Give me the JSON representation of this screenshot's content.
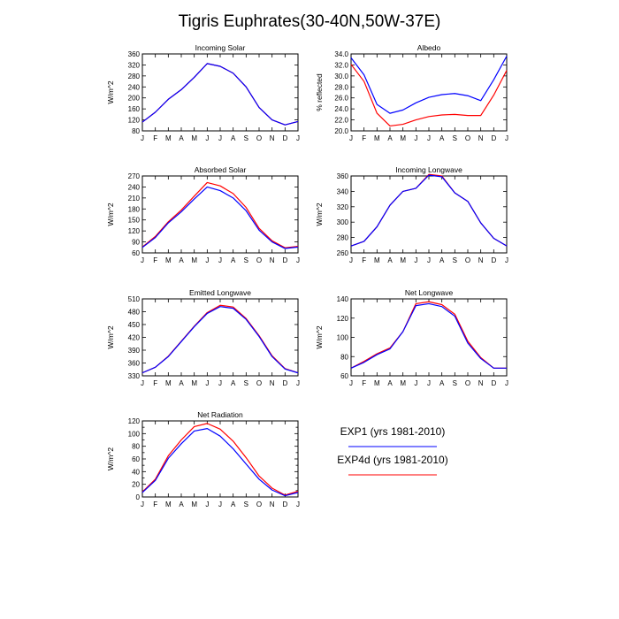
{
  "page": {
    "title": "Tigris Euphrates(30-40N,50W-37E)"
  },
  "legend": [
    {
      "label": "EXP1 (yrs 1981-2010)",
      "color": "#0000ff"
    },
    {
      "label": "EXP4d (yrs 1981-2010)",
      "color": "#ff0000"
    }
  ],
  "chart_data": [
    {
      "type": "line",
      "title": "Incoming Solar",
      "ylabel": "W/m^2",
      "xlabel": "",
      "categories": [
        "J",
        "F",
        "M",
        "A",
        "M",
        "J",
        "J",
        "A",
        "S",
        "O",
        "N",
        "D",
        "J"
      ],
      "ylim": [
        80,
        360
      ],
      "yticks": [
        "80",
        "120",
        "160",
        "200",
        "240",
        "280",
        "320",
        "360"
      ],
      "series": [
        {
          "name": "EXP1 (yrs 1981-2010)",
          "color": "#0000ff",
          "values": [
            112,
            148,
            195,
            230,
            275,
            325,
            315,
            290,
            240,
            165,
            120,
            102,
            114
          ]
        },
        {
          "name": "EXP4d (yrs 1981-2010)",
          "color": "#ff0000",
          "values": [
            112,
            148,
            195,
            230,
            275,
            325,
            315,
            290,
            240,
            165,
            120,
            102,
            114
          ]
        }
      ]
    },
    {
      "type": "line",
      "title": "Albedo",
      "ylabel": "% reflected",
      "xlabel": "",
      "categories": [
        "J",
        "F",
        "M",
        "A",
        "M",
        "J",
        "J",
        "A",
        "S",
        "O",
        "N",
        "D",
        "J"
      ],
      "ylim": [
        20,
        34
      ],
      "yticks": [
        "20.0",
        "22.0",
        "24.0",
        "26.0",
        "28.0",
        "30.0",
        "32.0",
        "34.0"
      ],
      "series": [
        {
          "name": "EXP1 (yrs 1981-2010)",
          "color": "#0000ff",
          "values": [
            33.3,
            30.2,
            24.8,
            23.2,
            23.8,
            25.1,
            26.1,
            26.6,
            26.8,
            26.4,
            25.5,
            29.3,
            33.6
          ]
        },
        {
          "name": "EXP4d (yrs 1981-2010)",
          "color": "#ff0000",
          "values": [
            32.1,
            29.0,
            23.2,
            20.9,
            21.2,
            22.0,
            22.6,
            22.9,
            23.0,
            22.8,
            22.8,
            26.5,
            31.0
          ]
        }
      ]
    },
    {
      "type": "line",
      "title": "Absorbed Solar",
      "ylabel": "W/m^2",
      "xlabel": "",
      "categories": [
        "J",
        "F",
        "M",
        "A",
        "M",
        "J",
        "J",
        "A",
        "S",
        "O",
        "N",
        "D",
        "J"
      ],
      "ylim": [
        60,
        270
      ],
      "yticks": [
        "60",
        "90",
        "120",
        "150",
        "180",
        "210",
        "240",
        "270"
      ],
      "series": [
        {
          "name": "EXP1 (yrs 1981-2010)",
          "color": "#0000ff",
          "values": [
            75,
            102,
            142,
            172,
            207,
            240,
            230,
            210,
            175,
            122,
            90,
            72,
            76
          ]
        },
        {
          "name": "EXP4d (yrs 1981-2010)",
          "color": "#ff0000",
          "values": [
            76,
            105,
            145,
            177,
            215,
            252,
            243,
            222,
            184,
            127,
            93,
            74,
            78
          ]
        }
      ]
    },
    {
      "type": "line",
      "title": "Incoming Longwave",
      "ylabel": "W/m^2",
      "xlabel": "",
      "categories": [
        "J",
        "F",
        "M",
        "A",
        "M",
        "J",
        "J",
        "A",
        "S",
        "O",
        "N",
        "D",
        "J"
      ],
      "ylim": [
        260,
        360
      ],
      "yticks": [
        "260",
        "280",
        "300",
        "320",
        "340",
        "360"
      ],
      "series": [
        {
          "name": "EXP1 (yrs 1981-2010)",
          "color": "#0000ff",
          "values": [
            269,
            275,
            294,
            322,
            340,
            344,
            361,
            359,
            338,
            327,
            299,
            279,
            269
          ]
        },
        {
          "name": "EXP4d (yrs 1981-2010)",
          "color": "#ff0000",
          "values": [
            269,
            275,
            294,
            322,
            340,
            344,
            362,
            360,
            338,
            327,
            299,
            279,
            269
          ]
        }
      ]
    },
    {
      "type": "line",
      "title": "Emitted Longwave",
      "ylabel": "W/m^2",
      "xlabel": "",
      "categories": [
        "J",
        "F",
        "M",
        "A",
        "M",
        "J",
        "J",
        "A",
        "S",
        "O",
        "N",
        "D",
        "J"
      ],
      "ylim": [
        330,
        510
      ],
      "yticks": [
        "330",
        "360",
        "390",
        "420",
        "450",
        "480",
        "510"
      ],
      "series": [
        {
          "name": "EXP1 (yrs 1981-2010)",
          "color": "#0000ff",
          "values": [
            337,
            350,
            375,
            410,
            445,
            476,
            492,
            488,
            462,
            422,
            375,
            346,
            337
          ]
        },
        {
          "name": "EXP4d (yrs 1981-2010)",
          "color": "#ff0000",
          "values": [
            337,
            350,
            376,
            411,
            446,
            478,
            495,
            491,
            464,
            424,
            377,
            347,
            337
          ]
        }
      ]
    },
    {
      "type": "line",
      "title": "Net Longwave",
      "ylabel": "W/m^2",
      "xlabel": "",
      "categories": [
        "J",
        "F",
        "M",
        "A",
        "M",
        "J",
        "J",
        "A",
        "S",
        "O",
        "N",
        "D",
        "J"
      ],
      "ylim": [
        60,
        140
      ],
      "yticks": [
        "60",
        "80",
        "100",
        "120",
        "140"
      ],
      "series": [
        {
          "name": "EXP1 (yrs 1981-2010)",
          "color": "#0000ff",
          "values": [
            68,
            74,
            82,
            88,
            106,
            133,
            135,
            132,
            122,
            94,
            78,
            68,
            68
          ]
        },
        {
          "name": "EXP4d (yrs 1981-2010)",
          "color": "#ff0000",
          "values": [
            68,
            75,
            83,
            89,
            106,
            135,
            137,
            134,
            124,
            96,
            79,
            68,
            68
          ]
        }
      ]
    },
    {
      "type": "line",
      "title": "Net Radiation",
      "ylabel": "W/m^2",
      "xlabel": "",
      "categories": [
        "J",
        "F",
        "M",
        "A",
        "M",
        "J",
        "J",
        "A",
        "S",
        "O",
        "N",
        "D",
        "J"
      ],
      "ylim": [
        0,
        120
      ],
      "yticks": [
        "0",
        "10",
        "20",
        "30",
        "40",
        "50",
        "60",
        "70",
        "80",
        "90",
        "100",
        "110",
        "120"
      ],
      "ytick_labels_shown": [
        "0",
        "20",
        "40",
        "60",
        "80",
        "100",
        "120"
      ],
      "series": [
        {
          "name": "EXP1 (yrs 1981-2010)",
          "color": "#0000ff",
          "values": [
            7,
            26,
            61,
            84,
            104,
            108,
            96,
            76,
            52,
            28,
            11,
            2,
            7
          ]
        },
        {
          "name": "EXP4d (yrs 1981-2010)",
          "color": "#ff0000",
          "values": [
            8,
            28,
            65,
            90,
            111,
            116,
            107,
            88,
            62,
            33,
            14,
            3,
            9
          ]
        }
      ]
    }
  ]
}
